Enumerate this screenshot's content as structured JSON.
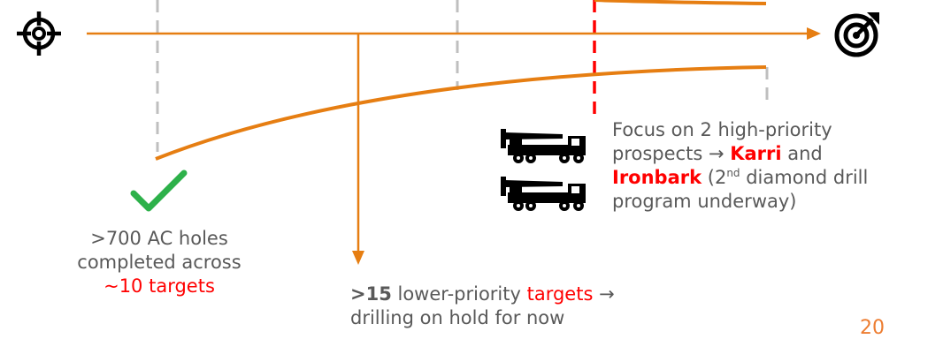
{
  "notes": {
    "completed": {
      "line1": ">700 AC holes",
      "line2": "completed across",
      "highlight": "~10 targets"
    },
    "on_hold": {
      "count": ">15",
      "text1": " lower-priority ",
      "highlight": "targets",
      "arrow": " →",
      "line2": "drilling on hold for now"
    },
    "focus": {
      "text1": "Focus on 2 high-priority",
      "text2": "prospects → ",
      "karri": "Karri",
      "and": " and",
      "ironbark": "Ironbark",
      "paren_open": " (2",
      "superscript": "nd",
      "text3": " diamond drill",
      "text4": "program underway)"
    }
  },
  "page_number": "20",
  "colors": {
    "orange": "#e67e12",
    "grey_dash": "#bfbfbf",
    "red_dash": "#ff0000",
    "text": "#595959",
    "check": "#2db14a"
  },
  "icons": {
    "start": "crosshair-icon",
    "end": "bullseye-arrow-icon",
    "check": "checkmark-icon",
    "rig": "drill-rig-truck-icon"
  }
}
